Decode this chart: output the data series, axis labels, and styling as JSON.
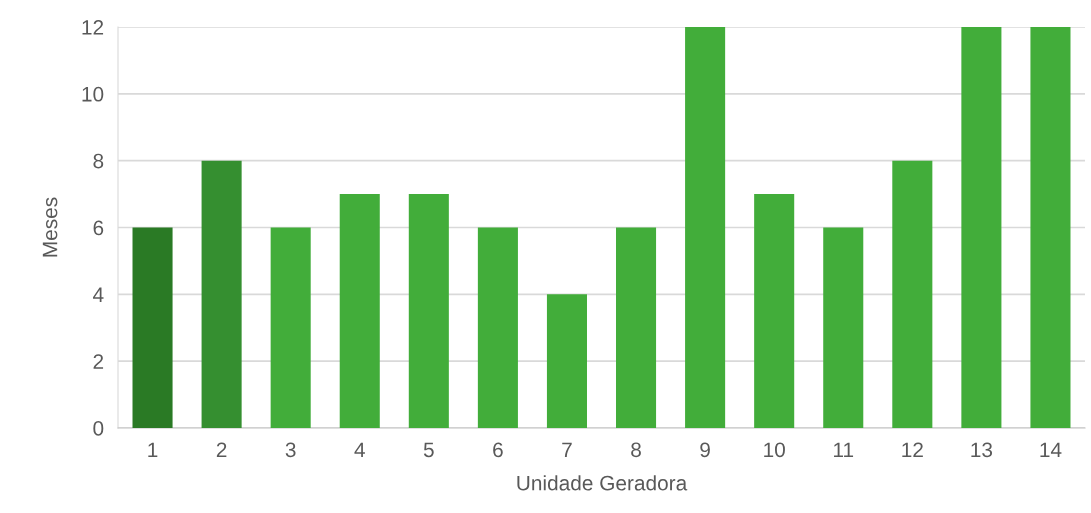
{
  "chart_data": {
    "type": "bar",
    "xlabel": "Unidade Geradora",
    "ylabel": "Meses",
    "categories": [
      "1",
      "2",
      "3",
      "4",
      "5",
      "6",
      "7",
      "8",
      "9",
      "10",
      "11",
      "12",
      "13",
      "14"
    ],
    "values": [
      6,
      8,
      6,
      7,
      7,
      6,
      4,
      6,
      12,
      7,
      6,
      8,
      12,
      12
    ],
    "colors": [
      "#2a7a25",
      "#358f30",
      "#42ad3a",
      "#42ad3a",
      "#42ad3a",
      "#42ad3a",
      "#42ad3a",
      "#42ad3a",
      "#42ad3a",
      "#42ad3a",
      "#42ad3a",
      "#42ad3a",
      "#42ad3a",
      "#42ad3a"
    ],
    "ylim": [
      0,
      12
    ],
    "yticks": [
      0,
      2,
      4,
      6,
      8,
      10,
      12
    ],
    "grid": "y",
    "legend": false
  }
}
